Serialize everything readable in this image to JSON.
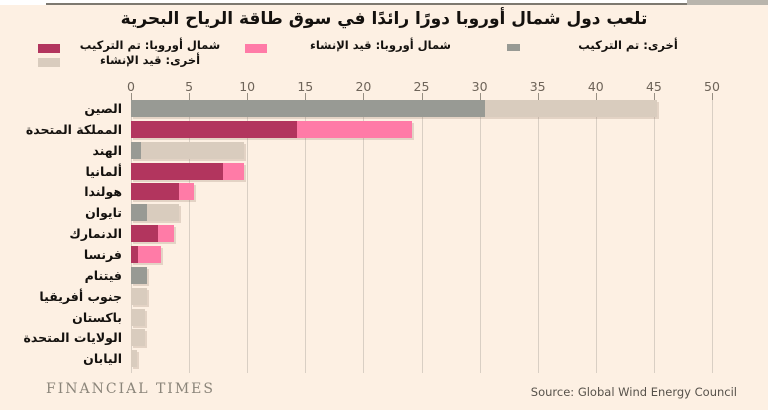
{
  "footer": {
    "brand": "FINANCIAL TIMES",
    "source": "Source: Global Wind Energy Council"
  },
  "colors": {
    "background": "#fdf0e3",
    "ne_installed": "#b2355e",
    "ne_under_construction": "#ff7ba7",
    "other_installed": "#989a94",
    "other_under_construction": "#d9ccbe",
    "gridline": "#d9cfc4",
    "text": "#14110e",
    "muted": "#6e6459"
  },
  "chart_data": {
    "type": "bar",
    "orientation": "horizontal",
    "stacked": true,
    "title": "تلعب دول شمال أوروبا دورًا رائدًا في سوق طاقة الرياح البحرية",
    "xlim": [
      0,
      50
    ],
    "xticks": [
      0,
      5,
      10,
      15,
      20,
      25,
      30,
      35,
      40,
      45,
      50
    ],
    "grid": true,
    "legend": [
      {
        "label": "شمال أوروبا: تم التركيب",
        "color_key": "ne_installed"
      },
      {
        "label": "أخرى: قيد الإنشاء",
        "color_key": "other_under_construction"
      },
      {
        "label": "شمال أوروبا: قيد الإنشاء",
        "color_key": "ne_under_construction"
      },
      {
        "label": "أخرى: تم التركيب",
        "color_key": "other_installed"
      }
    ],
    "series_names": [
      "تم التركيب",
      "قيد الإنشاء"
    ],
    "countries": [
      {
        "label": "الصين",
        "region": "other",
        "installed": 30.5,
        "under_construction": 14.8
      },
      {
        "label": "المملكة المتحدة",
        "region": "ne",
        "installed": 14.3,
        "under_construction": 9.9
      },
      {
        "label": "الهند",
        "region": "other",
        "installed": 0.9,
        "under_construction": 8.8
      },
      {
        "label": "ألمانيا",
        "region": "ne",
        "installed": 7.9,
        "under_construction": 1.8
      },
      {
        "label": "هولندا",
        "region": "ne",
        "installed": 4.1,
        "under_construction": 1.3
      },
      {
        "label": "تايوان",
        "region": "other",
        "installed": 1.4,
        "under_construction": 2.7
      },
      {
        "label": "الدنمارك",
        "region": "ne",
        "installed": 2.3,
        "under_construction": 1.4
      },
      {
        "label": "فرنسا",
        "region": "ne",
        "installed": 0.6,
        "under_construction": 2.0
      },
      {
        "label": "فيتنام",
        "region": "other",
        "installed": 1.4,
        "under_construction": 0
      },
      {
        "label": "جنوب أفريقيا",
        "region": "other",
        "installed": 0,
        "under_construction": 1.4
      },
      {
        "label": "باكستان",
        "region": "other",
        "installed": 0,
        "under_construction": 1.2
      },
      {
        "label": "الولايات المتحدة",
        "region": "other",
        "installed": 0,
        "under_construction": 1.2
      },
      {
        "label": "اليابان",
        "region": "other",
        "installed": 0,
        "under_construction": 0.5
      }
    ]
  }
}
